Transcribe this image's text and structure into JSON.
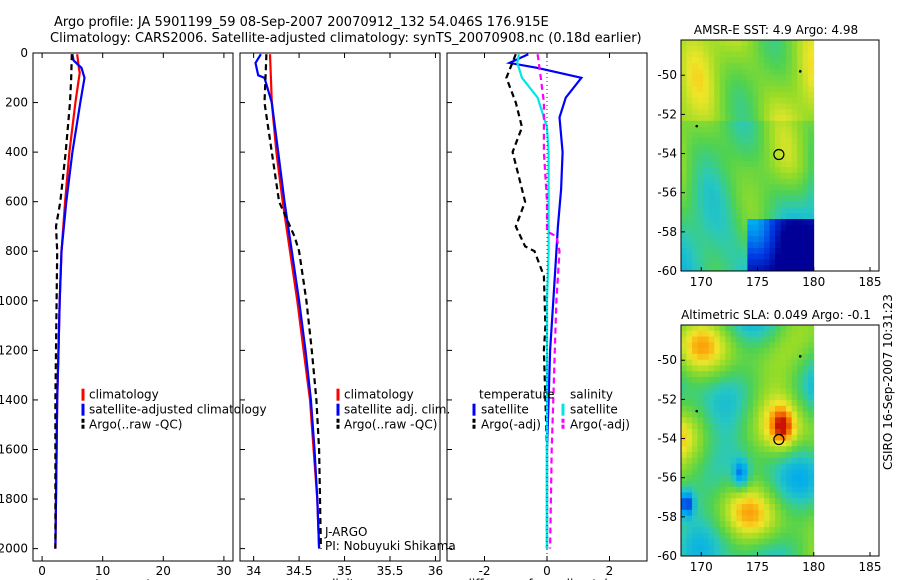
{
  "header": {
    "line1": "Argo profile: JA 5901199_59 08-Sep-2007 20070912_132 54.046S 176.915E",
    "line2": "Climatology: CARS2006. Satellite-adjusted climatology: synTS_20070908.nc (0.18d earlier)"
  },
  "side_label": "CSIRO 16-Sep-2007 10:31:23",
  "colors": {
    "climatology": "#ff0000",
    "satellite": "#0000ff",
    "argo": "#000000",
    "salinity_satellite": "#00e5e5",
    "salinity_argo": "#ff00ff"
  },
  "chart_data": [
    {
      "type": "line",
      "name": "temperature-profile",
      "xlabel": "temperature",
      "ylabel": "",
      "xlim": [
        -1.5,
        31.5
      ],
      "ylim": [
        2050,
        0
      ],
      "xticks": [
        "0",
        "10",
        "20",
        "30"
      ],
      "xtick_values": [
        0,
        10,
        20,
        30
      ],
      "yticks": [
        "0",
        "200",
        "400",
        "600",
        "800",
        "1000",
        "1200",
        "1400",
        "1600",
        "1800",
        "2000"
      ],
      "ytick_values": [
        0,
        200,
        400,
        600,
        800,
        1000,
        1200,
        1400,
        1600,
        1800,
        2000
      ],
      "legend": [
        "climatology",
        "satellite-adjusted climatology",
        "Argo(..raw -QC)"
      ],
      "series": [
        {
          "name": "climatology",
          "color": "#ff0000",
          "dash": "",
          "x": [
            5.8,
            6.0,
            6.2,
            5.5,
            4.5,
            3.8,
            3.2,
            2.9,
            2.7,
            2.5,
            2.4,
            2.3,
            2.2
          ],
          "y": [
            5,
            50,
            80,
            200,
            400,
            600,
            800,
            1000,
            1200,
            1400,
            1600,
            1800,
            2000
          ]
        },
        {
          "name": "satellite-adjusted climatology",
          "color": "#0000ff",
          "dash": "",
          "x": [
            5.0,
            5.2,
            6.5,
            7.0,
            6.3,
            5.0,
            4.0,
            3.2,
            2.9,
            2.7,
            2.5,
            2.4,
            2.3,
            2.2
          ],
          "y": [
            5,
            30,
            60,
            100,
            200,
            400,
            600,
            800,
            1000,
            1200,
            1400,
            1600,
            1800,
            2000
          ]
        },
        {
          "name": "Argo(..raw -QC)",
          "color": "#000000",
          "dash": "6,4",
          "x": [
            4.9,
            4.8,
            4.6,
            3.9,
            3.0,
            2.3,
            2.5,
            2.4,
            2.3,
            2.2,
            2.2,
            2.2
          ],
          "y": [
            5,
            100,
            200,
            400,
            600,
            700,
            800,
            1000,
            1200,
            1400,
            1600,
            2000
          ]
        }
      ]
    },
    {
      "type": "line",
      "name": "salinity-profile",
      "xlabel": "salinity",
      "ylabel": "",
      "xlim": [
        33.85,
        36.05
      ],
      "ylim": [
        2050,
        0
      ],
      "xticks": [
        "34",
        "34.5",
        "35",
        "35.5",
        "36"
      ],
      "xtick_values": [
        34,
        34.5,
        35,
        35.5,
        36
      ],
      "legend": [
        "climatology",
        "satellite adj. clim.",
        "Argo(..raw -QC)"
      ],
      "series": [
        {
          "name": "climatology",
          "color": "#ff0000",
          "dash": "",
          "x": [
            34.18,
            34.19,
            34.2,
            34.25,
            34.32,
            34.4,
            34.48,
            34.55,
            34.62,
            34.66,
            34.7,
            34.72
          ],
          "y": [
            5,
            100,
            200,
            400,
            600,
            800,
            1000,
            1200,
            1400,
            1600,
            1800,
            2000
          ]
        },
        {
          "name": "satellite adj. clim.",
          "color": "#0000ff",
          "dash": "",
          "x": [
            34.08,
            34.02,
            34.05,
            34.12,
            34.2,
            34.27,
            34.34,
            34.42,
            34.5,
            34.57,
            34.63,
            34.67,
            34.7,
            34.72
          ],
          "y": [
            5,
            40,
            90,
            100,
            200,
            400,
            600,
            800,
            1000,
            1200,
            1400,
            1600,
            1800,
            2000
          ]
        },
        {
          "name": "Argo(..raw -QC)",
          "color": "#000000",
          "dash": "6,4",
          "x": [
            34.14,
            34.13,
            34.12,
            34.2,
            34.28,
            34.45,
            34.5,
            34.58,
            34.64,
            34.69,
            34.72,
            34.74
          ],
          "y": [
            5,
            100,
            200,
            400,
            600,
            740,
            800,
            1000,
            1200,
            1400,
            1600,
            2000
          ]
        }
      ],
      "annotations": [
        "J-ARGO",
        "PI: Nobuyuki Shikama"
      ]
    },
    {
      "type": "line",
      "name": "difference-profile",
      "xlabel": "difference from climatology",
      "ylabel": "",
      "xlim": [
        -3.2,
        3.2
      ],
      "ylim": [
        2050,
        0
      ],
      "xticks": [
        "-2",
        "0",
        "2"
      ],
      "xtick_values": [
        -2,
        0,
        2
      ],
      "legend_groups": [
        {
          "title": "temperature",
          "items": [
            "satellite",
            "Argo(-adj)"
          ]
        },
        {
          "title": "salinity",
          "items": [
            "satellite",
            "Argo(-adj)"
          ]
        }
      ],
      "series": [
        {
          "name": "temperature satellite",
          "color": "#0000ff",
          "dash": "",
          "x": [
            -0.6,
            -1.2,
            -0.3,
            1.1,
            0.6,
            0.4,
            0.5,
            0.45,
            0.35,
            0.3,
            0.2,
            0.1,
            0.05,
            0.0,
            0.0,
            0.0
          ],
          "y": [
            5,
            40,
            60,
            100,
            180,
            260,
            400,
            550,
            700,
            800,
            1000,
            1200,
            1400,
            1600,
            1800,
            2000
          ]
        },
        {
          "name": "temperature Argo(-adj)",
          "color": "#000000",
          "dash": "6,4",
          "x": [
            -1.0,
            -1.3,
            -1.0,
            -0.8,
            -1.1,
            -0.9,
            -0.7,
            -1.0,
            -0.7,
            -0.4,
            -0.1,
            -0.05,
            -0.1,
            -0.05,
            0.0,
            0.0
          ],
          "y": [
            5,
            100,
            200,
            300,
            400,
            500,
            600,
            700,
            780,
            800,
            900,
            1100,
            1200,
            1400,
            1600,
            2000
          ]
        },
        {
          "name": "salinity satellite",
          "color": "#00e5e5",
          "dash": "",
          "x": [
            -0.9,
            -0.95,
            -0.8,
            -0.3,
            0.0,
            0.05,
            0.05,
            0.05,
            0.0,
            0.0,
            0.0,
            0.0,
            0.0,
            0.0
          ],
          "y": [
            5,
            40,
            100,
            180,
            300,
            400,
            600,
            800,
            1000,
            1200,
            1400,
            1600,
            1800,
            2000
          ]
        },
        {
          "name": "salinity Argo(-adj)",
          "color": "#ff00ff",
          "dash": "6,4",
          "x": [
            -0.3,
            -0.2,
            -0.1,
            -0.1,
            0.0,
            0.0,
            0.3,
            0.4,
            0.3,
            0.25,
            0.2,
            0.15,
            0.1
          ],
          "y": [
            5,
            100,
            200,
            400,
            600,
            720,
            740,
            800,
            1000,
            1200,
            1400,
            1600,
            2000
          ]
        }
      ]
    },
    {
      "type": "heatmap",
      "name": "sst-map",
      "title": "AMSR-E SST: 4.9 Argo: 4.98",
      "xlim": [
        168.2,
        185.8
      ],
      "ylim": [
        -60,
        -48.2
      ],
      "xticks": [
        "170",
        "175",
        "180",
        "185"
      ],
      "xtick_values": [
        170,
        175,
        180,
        185
      ],
      "yticks": [
        "-50",
        "-52",
        "-54",
        "-56",
        "-58",
        "-60"
      ],
      "ytick_values": [
        -50,
        -52,
        -54,
        -56,
        -58,
        -60
      ],
      "data_extent_lon": [
        168.2,
        180
      ],
      "marker": {
        "lon": 176.9,
        "lat": -54.05
      }
    },
    {
      "type": "heatmap",
      "name": "sla-map",
      "title": "Altimetric SLA: 0.049 Argo: -0.1",
      "xlim": [
        168.2,
        185.8
      ],
      "ylim": [
        -60,
        -48.2
      ],
      "xticks": [
        "170",
        "175",
        "180",
        "185"
      ],
      "xtick_values": [
        170,
        175,
        180,
        185
      ],
      "yticks": [
        "-50",
        "-52",
        "-54",
        "-56",
        "-58",
        "-60"
      ],
      "ytick_values": [
        -50,
        -52,
        -54,
        -56,
        -58,
        -60
      ],
      "data_extent_lon": [
        168.2,
        180
      ],
      "marker": {
        "lon": 176.9,
        "lat": -54.05
      }
    }
  ]
}
